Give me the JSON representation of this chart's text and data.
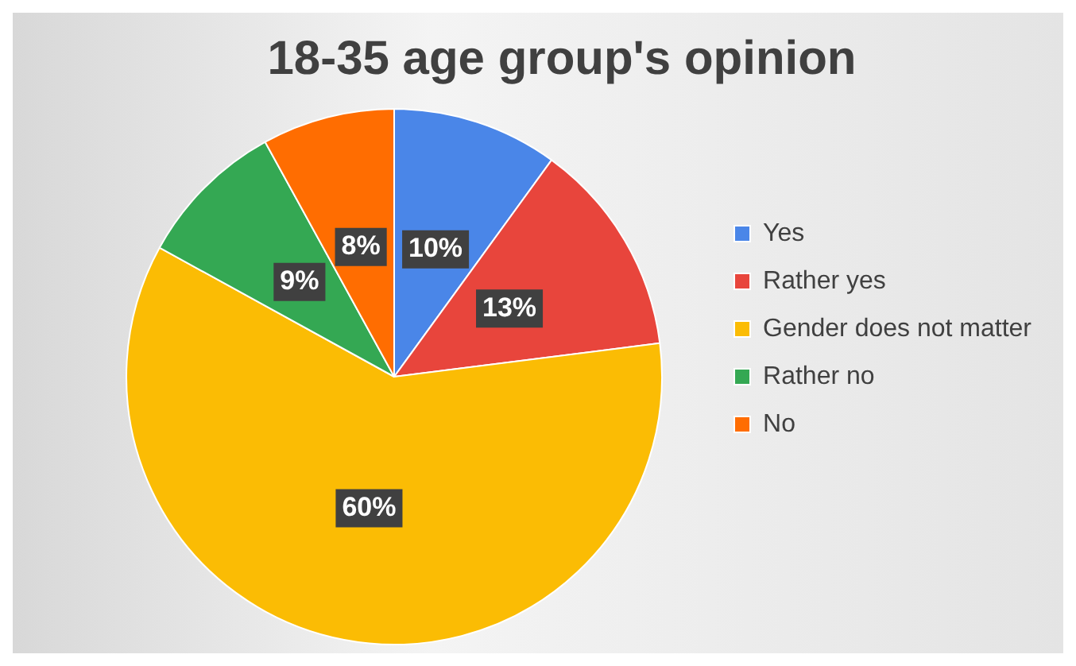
{
  "chart_data": {
    "type": "pie",
    "title": "18-35 age group's opinion",
    "categories": [
      "Yes",
      "Rather yes",
      "Gender does not matter",
      "Rather no",
      "No"
    ],
    "values": [
      10,
      13,
      60,
      9,
      8
    ],
    "colors": [
      "#4a86e8",
      "#e8453c",
      "#fbbc04",
      "#34a853",
      "#ff6d01"
    ],
    "value_labels": [
      "10%",
      "13%",
      "60%",
      "9%",
      "8%"
    ],
    "legend": "right"
  }
}
